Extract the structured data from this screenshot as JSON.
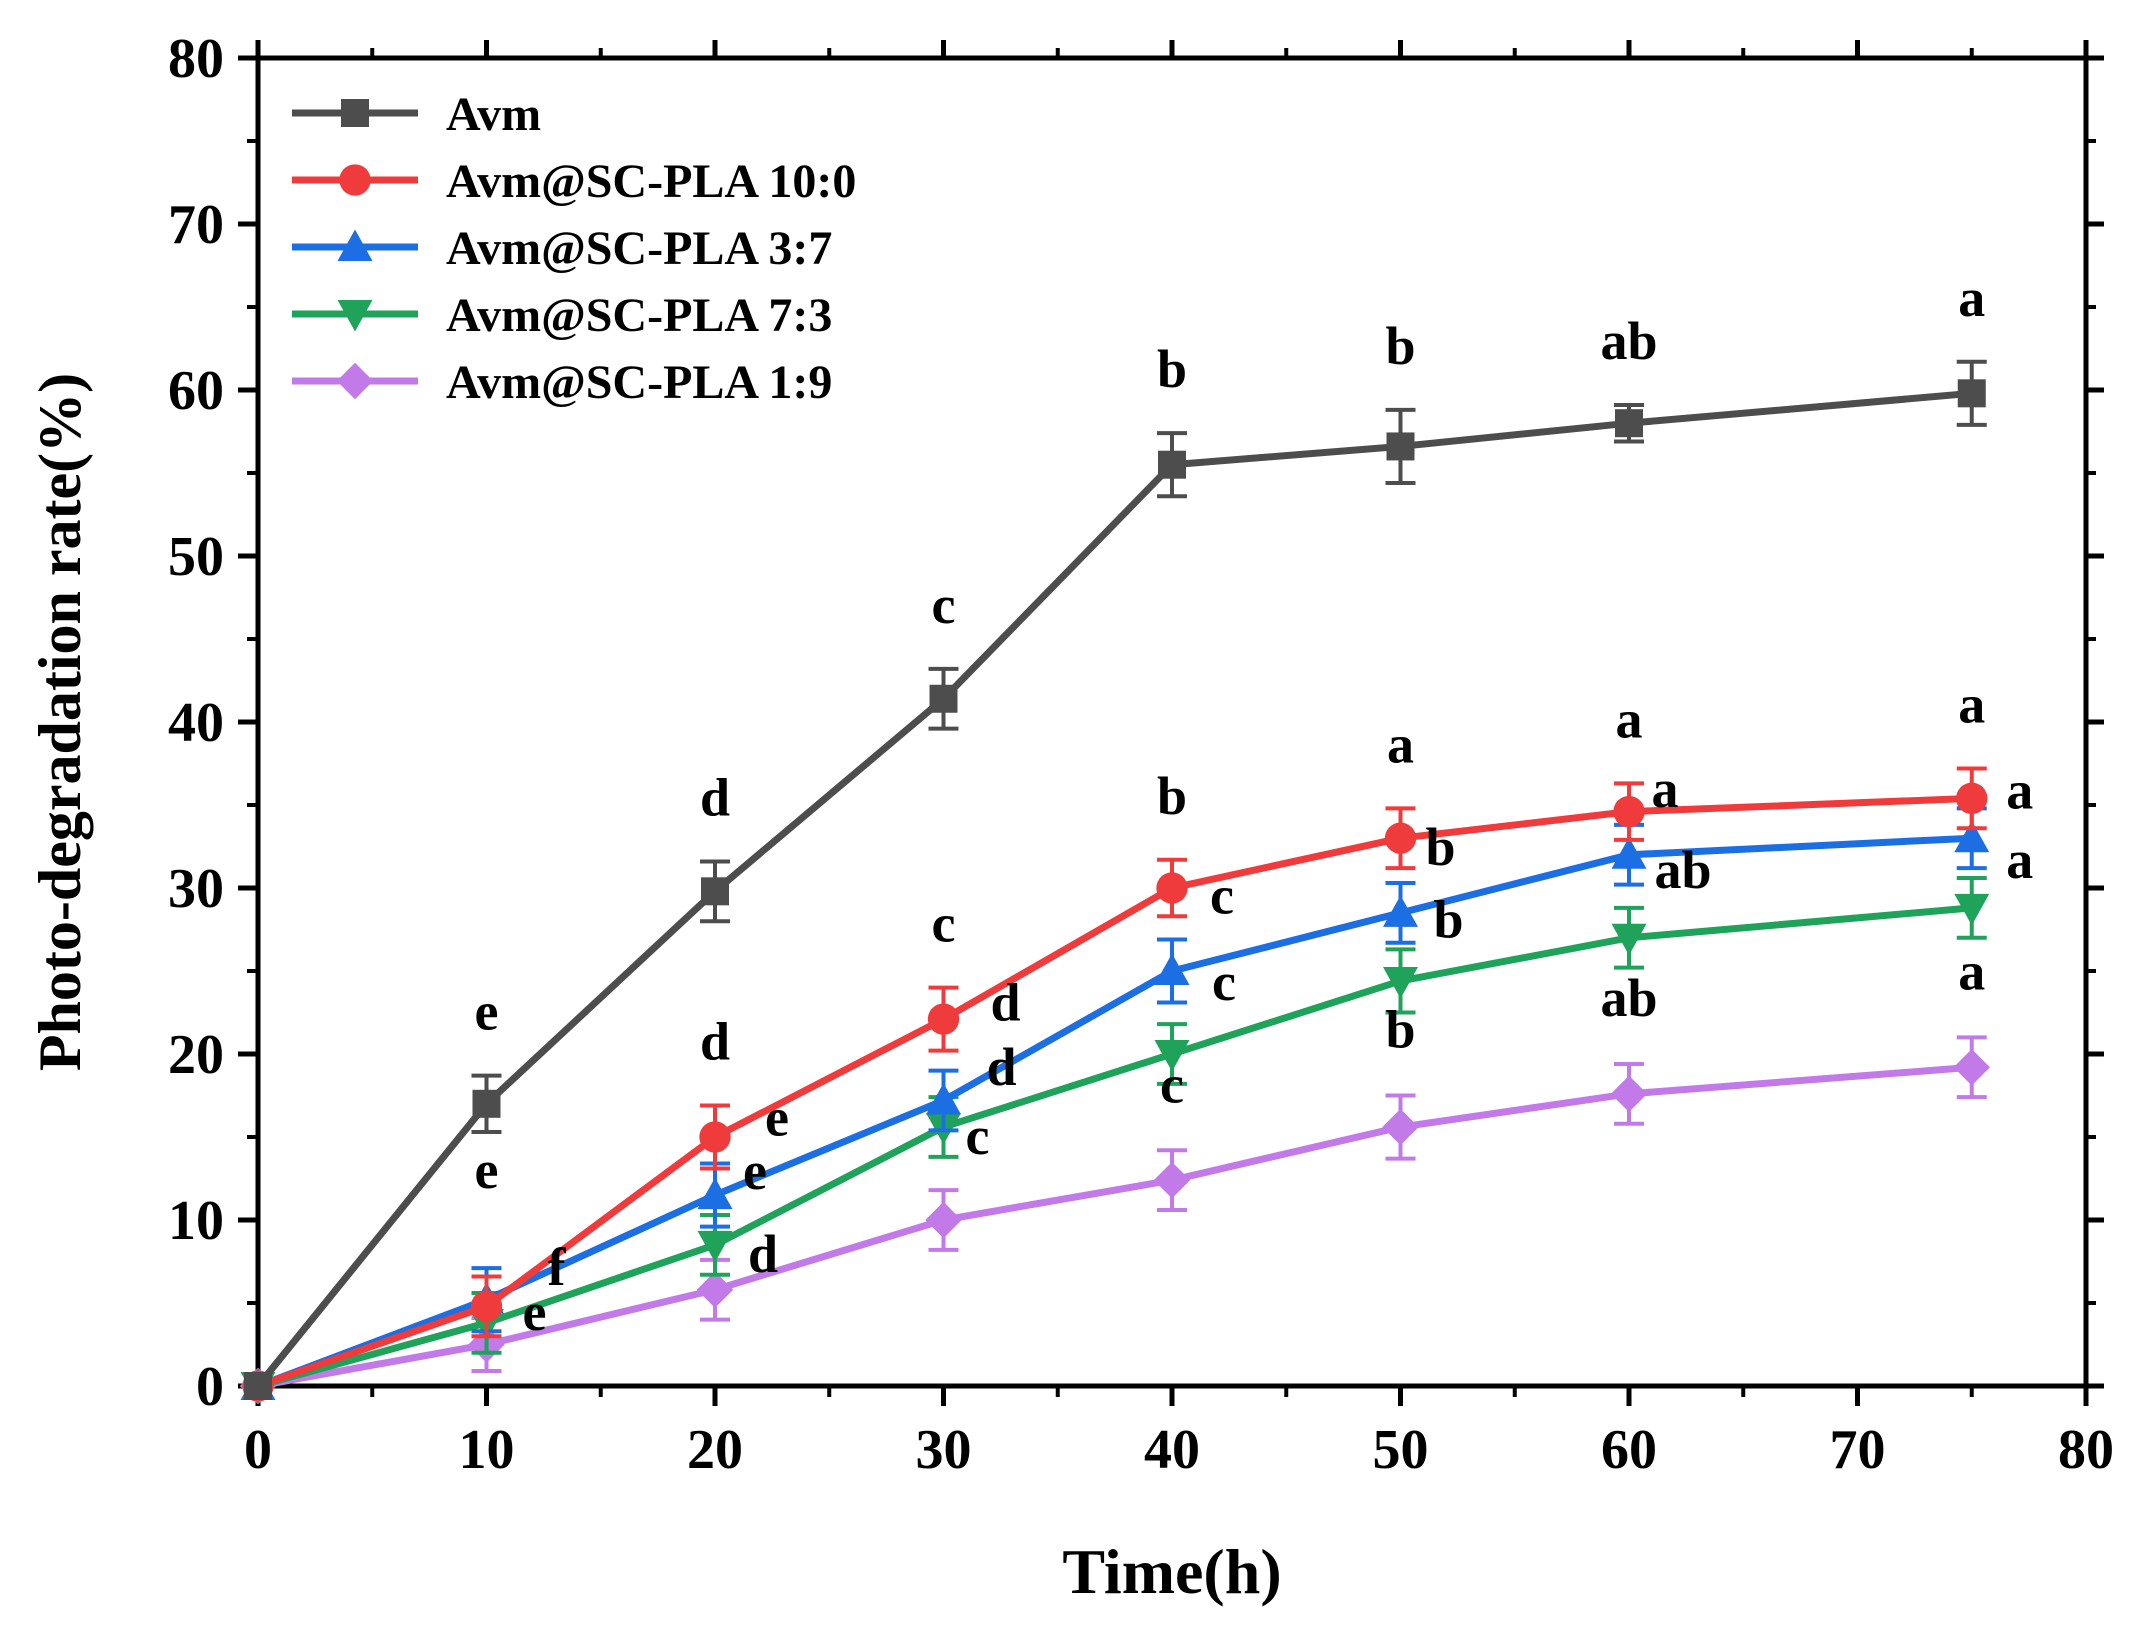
{
  "chart_data": {
    "type": "line",
    "xlabel": "Time(h)",
    "ylabel": "Photo-degradation rate(%)",
    "xlim": [
      0,
      80
    ],
    "ylim": [
      0,
      80
    ],
    "xticks": [
      0,
      10,
      20,
      30,
      40,
      50,
      60,
      70,
      80
    ],
    "yticks": [
      0,
      10,
      20,
      30,
      40,
      50,
      60,
      70,
      80
    ],
    "legend_position": "top-left",
    "x": [
      0,
      10,
      20,
      30,
      40,
      50,
      60,
      75
    ],
    "series": [
      {
        "name": "Avm",
        "color": "#4d4d4d",
        "marker": "square",
        "values": [
          0,
          17,
          29.8,
          41.4,
          55.5,
          56.6,
          58,
          59.8
        ],
        "errors": [
          0,
          1.7,
          1.8,
          1.8,
          1.9,
          2.2,
          1.1,
          1.9
        ],
        "letters": [
          "",
          "e",
          "d",
          "c",
          "b",
          "b",
          "ab",
          "a"
        ]
      },
      {
        "name": "Avm@SC-PLA 10:0",
        "color": "#ef3b3b",
        "marker": "circle",
        "values": [
          0,
          4.8,
          15,
          22.1,
          30,
          33,
          34.6,
          35.4
        ],
        "errors": [
          0,
          1.8,
          1.9,
          1.9,
          1.7,
          1.8,
          1.7,
          1.8
        ],
        "letters": [
          "",
          "",
          "d",
          "c",
          "b",
          "a",
          "a",
          "a"
        ]
      },
      {
        "name": "Avm@SC-PLA 3:7",
        "color": "#1c6ee3",
        "marker": "triangle-up",
        "values": [
          0,
          5.2,
          11.5,
          17.2,
          25,
          28.5,
          32,
          33
        ],
        "errors": [
          0,
          1.9,
          1.9,
          1.8,
          1.9,
          1.8,
          1.8,
          1.8
        ],
        "letters": [
          "",
          "e",
          "e",
          "d",
          "c",
          "b",
          "a",
          "a"
        ]
      },
      {
        "name": "Avm@SC-PLA 7:3",
        "color": "#1fa35a",
        "marker": "triangle-down",
        "values": [
          0,
          3.8,
          8.5,
          15.6,
          20,
          24.4,
          27,
          28.8
        ],
        "errors": [
          0,
          1.8,
          1.8,
          1.8,
          1.8,
          1.9,
          1.8,
          1.8
        ],
        "letters": [
          "",
          "f",
          "e",
          "d",
          "c",
          "b",
          "ab",
          "a"
        ]
      },
      {
        "name": "Avm@SC-PLA 1:9",
        "color": "#c27ae8",
        "marker": "diamond",
        "values": [
          0,
          2.5,
          5.8,
          10,
          12.4,
          15.6,
          17.6,
          19.2
        ],
        "errors": [
          0,
          1.6,
          1.8,
          1.8,
          1.8,
          1.9,
          1.8,
          1.8
        ],
        "letters": [
          "",
          "e",
          "d",
          "c",
          "c",
          "b",
          "ab",
          "a"
        ]
      }
    ]
  }
}
